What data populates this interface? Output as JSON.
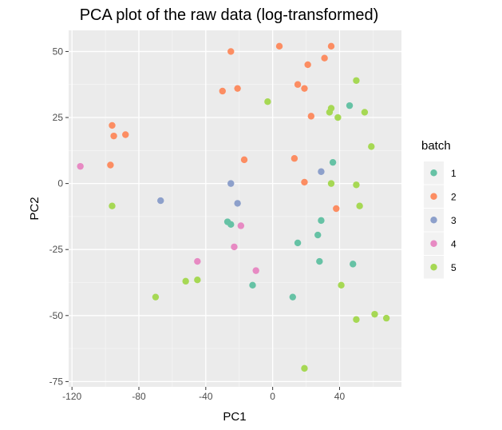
{
  "chart_data": {
    "type": "scatter",
    "title": "PCA plot of the raw data (log-transformed)",
    "xlabel": "PC1",
    "ylabel": "PC2",
    "xlim": [
      -122,
      77
    ],
    "ylim": [
      -77,
      58
    ],
    "x_ticks": [
      -120,
      -80,
      -40,
      0,
      40
    ],
    "x_tick_labels": [
      "-120",
      "-80",
      "-40",
      "0",
      "40"
    ],
    "y_ticks": [
      -75,
      -50,
      -25,
      0,
      25,
      50
    ],
    "y_tick_labels": [
      "-75",
      "-50",
      "-25",
      "0",
      "25",
      "50"
    ],
    "grid": true,
    "legend": {
      "title": "batch",
      "position": "right"
    },
    "series": [
      {
        "name": "1",
        "color": "#66c2a5",
        "points": [
          [
            46,
            29.5
          ],
          [
            36,
            8
          ],
          [
            -27,
            -14.5
          ],
          [
            -25,
            -15.5
          ],
          [
            15,
            -22.5
          ],
          [
            27,
            -19.5
          ],
          [
            29,
            -14
          ],
          [
            28,
            -29.5
          ],
          [
            48,
            -30.5
          ],
          [
            -12,
            -38.5
          ],
          [
            12,
            -43
          ]
        ]
      },
      {
        "name": "2",
        "color": "#fc8d62",
        "points": [
          [
            4,
            52
          ],
          [
            35,
            52
          ],
          [
            -25,
            50
          ],
          [
            31,
            47.5
          ],
          [
            21,
            45
          ],
          [
            15,
            37.5
          ],
          [
            19,
            36
          ],
          [
            -21,
            36
          ],
          [
            -30,
            35
          ],
          [
            23,
            25.5
          ],
          [
            -96,
            22
          ],
          [
            -95,
            18
          ],
          [
            -88,
            18.5
          ],
          [
            -17,
            9
          ],
          [
            13,
            9.5
          ],
          [
            -97,
            7
          ],
          [
            19,
            0.5
          ],
          [
            38,
            -9.5
          ]
        ]
      },
      {
        "name": "3",
        "color": "#8da0cb",
        "points": [
          [
            29,
            4.5
          ],
          [
            -25,
            0
          ],
          [
            -21,
            -7.5
          ],
          [
            -67,
            -6.5
          ]
        ]
      },
      {
        "name": "4",
        "color": "#e78ac3",
        "points": [
          [
            -115,
            6.5
          ],
          [
            -19,
            -16
          ],
          [
            -23,
            -24
          ],
          [
            -45,
            -29.5
          ],
          [
            -10,
            -33
          ]
        ]
      },
      {
        "name": "5",
        "color": "#a6d854",
        "points": [
          [
            50,
            39
          ],
          [
            -3,
            31
          ],
          [
            35,
            28.5
          ],
          [
            34,
            27
          ],
          [
            55,
            27
          ],
          [
            39,
            25
          ],
          [
            59,
            14
          ],
          [
            35,
            0
          ],
          [
            50,
            -0.5
          ],
          [
            -96,
            -8.5
          ],
          [
            52,
            -8.5
          ],
          [
            41,
            -38.5
          ],
          [
            -52,
            -37
          ],
          [
            -45,
            -36.5
          ],
          [
            -70,
            -43
          ],
          [
            61,
            -49.5
          ],
          [
            68,
            -51
          ],
          [
            50,
            -51.5
          ],
          [
            19,
            -70
          ]
        ]
      }
    ]
  }
}
